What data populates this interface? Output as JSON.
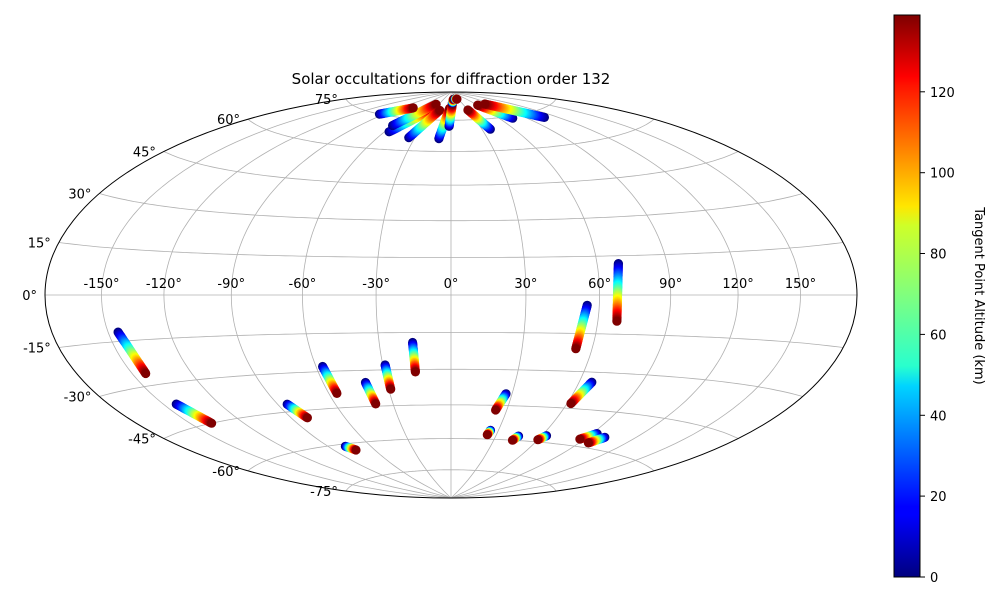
{
  "chart_data": {
    "type": "scatter",
    "projection": "hammer",
    "title": "Solar occultations for diffraction order 132",
    "lon_tick_labels": [
      "-150°",
      "-120°",
      "-90°",
      "-60°",
      "-30°",
      "0°",
      "30°",
      "60°",
      "90°",
      "120°",
      "150°"
    ],
    "lon_ticks": [
      -150,
      -120,
      -90,
      -60,
      -30,
      0,
      30,
      60,
      90,
      120,
      150
    ],
    "lat_tick_labels": [
      "-75°",
      "-60°",
      "-45°",
      "-30°",
      "-15°",
      "0°",
      "15°",
      "30°",
      "45°",
      "60°",
      "75°"
    ],
    "lat_ticks": [
      -75,
      -60,
      -45,
      -30,
      -15,
      0,
      15,
      30,
      45,
      60,
      75
    ],
    "grid": true,
    "colorbar": {
      "label": "Tangent Point Altitude (km)",
      "colormap": "jet",
      "min": 0,
      "max": 139,
      "tick_labels": [
        "0",
        "20",
        "40",
        "60",
        "80",
        "100",
        "120"
      ],
      "ticks": [
        0,
        20,
        40,
        60,
        80,
        100,
        120
      ]
    },
    "occultations": [
      {
        "lon_top": -145,
        "lat_top": -12,
        "lon_bottom": -143,
        "lat_bottom": -26
      },
      {
        "lon_top": -143,
        "lat_top": -37,
        "lon_bottom": -138,
        "lat_bottom": -45
      },
      {
        "lon_top": -85,
        "lat_top": -42,
        "lon_bottom": -81,
        "lat_bottom": -48
      },
      {
        "lon_top": -78,
        "lat_top": -61,
        "lon_bottom": -74,
        "lat_bottom": -63
      },
      {
        "lon_top": -57,
        "lat_top": -28,
        "lon_bottom": -56,
        "lat_bottom": -39
      },
      {
        "lon_top": -40,
        "lat_top": -35,
        "lon_bottom": -39,
        "lat_bottom": -44
      },
      {
        "lon_top": -29,
        "lat_top": -28,
        "lon_bottom": -29,
        "lat_bottom": -38
      },
      {
        "lon_top": -16,
        "lat_top": -19,
        "lon_bottom": -16,
        "lat_bottom": -31
      },
      {
        "lon_top": 27,
        "lat_top": -40,
        "lon_bottom": 24,
        "lat_bottom": -47
      },
      {
        "lon_top": 25,
        "lat_top": -56,
        "lon_bottom": 24,
        "lat_bottom": -58
      },
      {
        "lon_top": 45,
        "lat_top": -58,
        "lon_bottom": 43,
        "lat_bottom": -60
      },
      {
        "lon_top": 63,
        "lat_top": -57,
        "lon_bottom": 60,
        "lat_bottom": -59
      },
      {
        "lon_top": 93,
        "lat_top": -54,
        "lon_bottom": 87,
        "lat_bottom": -57
      },
      {
        "lon_top": 101,
        "lat_top": -55,
        "lon_bottom": 96,
        "lat_bottom": -58
      },
      {
        "lon_top": 66,
        "lat_top": -34,
        "lon_bottom": 62,
        "lat_bottom": -43
      },
      {
        "lon_top": 55,
        "lat_top": -4,
        "lon_bottom": 53,
        "lat_bottom": -21
      },
      {
        "lon_top": 69,
        "lat_top": 12,
        "lon_bottom": 68,
        "lat_bottom": -10
      },
      {
        "lon_top": -56,
        "lat_top": 68,
        "lon_bottom": -30,
        "lat_bottom": 81
      },
      {
        "lon_top": -60,
        "lat_top": 71,
        "lon_bottom": -37,
        "lat_bottom": 83
      },
      {
        "lon_top": -35,
        "lat_top": 66,
        "lon_bottom": -20,
        "lat_bottom": 80
      },
      {
        "lon_top": -10,
        "lat_top": 66,
        "lon_bottom": -3,
        "lat_bottom": 81
      },
      {
        "lon_top": -2,
        "lat_top": 72,
        "lon_bottom": 3,
        "lat_bottom": 83
      },
      {
        "lon_top": 4,
        "lat_top": 84,
        "lon_bottom": 10,
        "lat_bottom": 86
      },
      {
        "lon_top": 17,
        "lat_top": 86,
        "lon_bottom": 25,
        "lat_bottom": 86
      },
      {
        "lon_top": 38,
        "lat_top": 70,
        "lon_bottom": 30,
        "lat_bottom": 80
      },
      {
        "lon_top": 75,
        "lat_top": 74,
        "lon_bottom": 60,
        "lat_bottom": 82
      },
      {
        "lon_top": 108,
        "lat_top": 72,
        "lon_bottom": 78,
        "lat_bottom": 82
      },
      {
        "lon_top": -95,
        "lat_top": 75,
        "lon_bottom": -70,
        "lat_bottom": 80
      }
    ]
  }
}
